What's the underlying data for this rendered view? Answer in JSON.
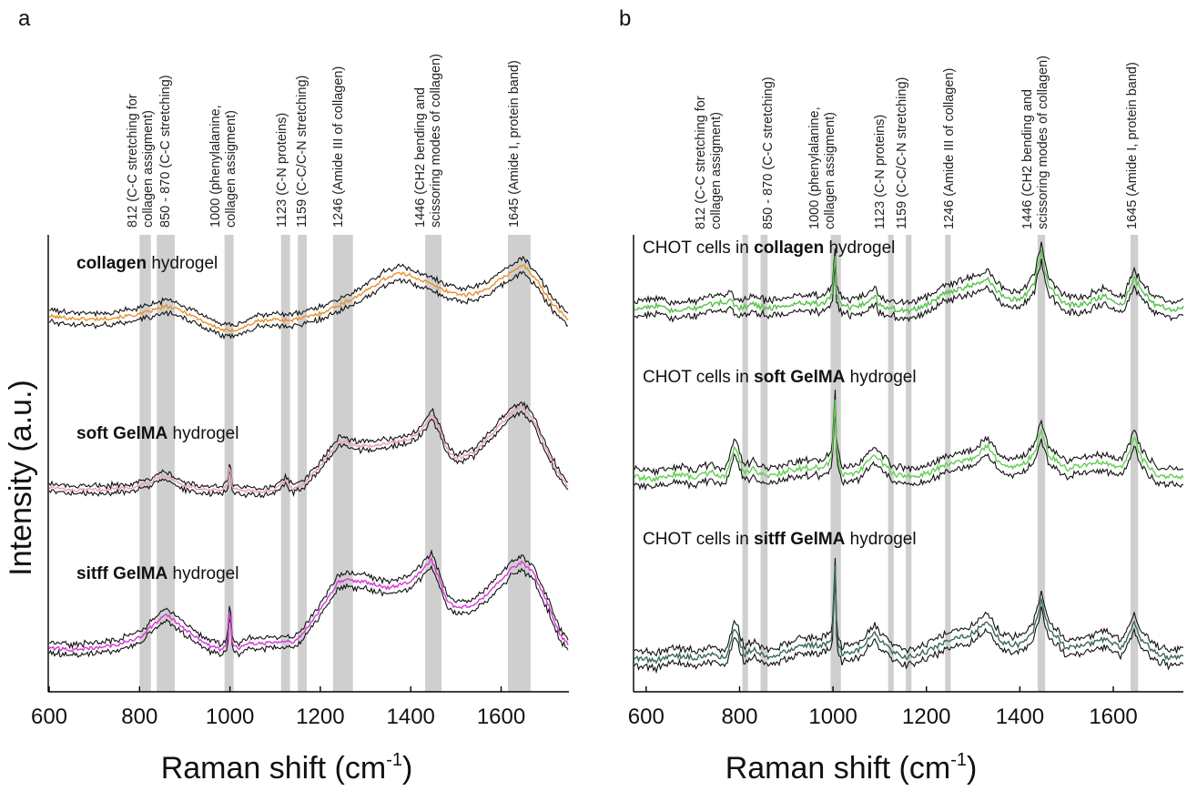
{
  "panels": [
    {
      "letter": "a"
    },
    {
      "letter": "b"
    }
  ],
  "ylabel": "Intensity (a.u.)",
  "xlabel_main": "Raman shift (cm",
  "xlabel_sup": "-1",
  "xlabel_close": ")",
  "peak_labels_a": [
    {
      "l1": "812 (C-C stretching for",
      "l2": "collagen assigment)"
    },
    {
      "l1": "850 - 870 (C-C stretching)",
      "l2": ""
    },
    {
      "l1": "1000 (phenylalanine,",
      "l2": "collagen assigment)"
    },
    {
      "l1": "1123 (C-N proteins)",
      "l2": ""
    },
    {
      "l1": "1159 (C-C/C-N stretching)",
      "l2": ""
    },
    {
      "l1": "1246 (Amide III of collagen)",
      "l2": ""
    },
    {
      "l1": "1446 (CH2 bending and",
      "l2": "scissoring modes of collagen)"
    },
    {
      "l1": "1645 (Amide I, protein band)",
      "l2": ""
    }
  ],
  "peak_labels_b": [
    {
      "l1": "812 (C-C stretching for",
      "l2": "collagen assigment)"
    },
    {
      "l1": "850 - 870 (C-C stretching)",
      "l2": ""
    },
    {
      "l1": "1000 (phenylalanine,",
      "l2": "collagen assigment)"
    },
    {
      "l1": "1123 (C-N proteins)",
      "l2": ""
    },
    {
      "l1": "1159 (C-C/C-N stretching)",
      "l2": ""
    },
    {
      "l1": "1246 (Amide III of collagen)",
      "l2": ""
    },
    {
      "l1": "1446 (CH2 bending and",
      "l2": "scissoring modes of collagen)"
    },
    {
      "l1": "1645 (Amide I, protein band)",
      "l2": ""
    }
  ],
  "series_labels_a": [
    {
      "bold": "collagen",
      "rest": " hydrogel"
    },
    {
      "bold": "soft GelMA",
      "rest": " hydrogel"
    },
    {
      "bold": "sitff GelMA",
      "rest": " hydrogel"
    }
  ],
  "series_labels_b": [
    {
      "pre": "CHOT cells in ",
      "bold": "collagen",
      "rest": " hydrogel"
    },
    {
      "pre": "CHOT cells in ",
      "bold": "soft GelMA",
      "rest": " hydrogel"
    },
    {
      "pre": "CHOT cells in ",
      "bold": "sitff GelMA",
      "rest": " hydrogel"
    }
  ],
  "chart_data": [
    {
      "type": "line",
      "panel": "a",
      "xlabel": "Raman shift (cm-1)",
      "ylabel": "Intensity (a.u.)",
      "xlim": [
        600,
        1750
      ],
      "xticks": [
        600,
        800,
        1000,
        1200,
        1400,
        1600
      ],
      "bands": [
        [
          800,
          825
        ],
        [
          838,
          878
        ],
        [
          988,
          1008
        ],
        [
          1113,
          1133
        ],
        [
          1150,
          1170
        ],
        [
          1228,
          1272
        ],
        [
          1432,
          1468
        ],
        [
          1615,
          1665
        ]
      ],
      "series": [
        {
          "name": "collagen hydrogel",
          "color": "#e8912a",
          "spread": 0.055,
          "x": [
            600,
            650,
            700,
            750,
            800,
            830,
            860,
            890,
            920,
            950,
            980,
            1000,
            1030,
            1060,
            1100,
            1130,
            1160,
            1200,
            1230,
            1260,
            1300,
            1340,
            1370,
            1400,
            1430,
            1450,
            1480,
            1520,
            1560,
            1600,
            1630,
            1650,
            1680,
            1710,
            1750
          ],
          "y": [
            0.25,
            0.23,
            0.22,
            0.24,
            0.27,
            0.31,
            0.35,
            0.31,
            0.25,
            0.18,
            0.12,
            0.1,
            0.14,
            0.2,
            0.22,
            0.21,
            0.23,
            0.28,
            0.34,
            0.4,
            0.5,
            0.62,
            0.68,
            0.66,
            0.6,
            0.56,
            0.5,
            0.46,
            0.5,
            0.62,
            0.72,
            0.76,
            0.6,
            0.4,
            0.2
          ]
        },
        {
          "name": "soft GelMA hydrogel",
          "color": "#e7a0b8",
          "spread": 0.035,
          "x": [
            600,
            650,
            700,
            750,
            800,
            830,
            850,
            870,
            900,
            940,
            980,
            995,
            1000,
            1005,
            1020,
            1060,
            1100,
            1123,
            1140,
            1160,
            1200,
            1240,
            1260,
            1300,
            1350,
            1400,
            1430,
            1446,
            1460,
            1480,
            1500,
            1540,
            1580,
            1620,
            1645,
            1670,
            1700,
            1730,
            1750
          ],
          "y": [
            0.12,
            0.08,
            0.09,
            0.1,
            0.13,
            0.18,
            0.25,
            0.2,
            0.13,
            0.09,
            0.08,
            0.12,
            0.36,
            0.12,
            0.08,
            0.07,
            0.09,
            0.18,
            0.1,
            0.14,
            0.32,
            0.58,
            0.56,
            0.52,
            0.56,
            0.6,
            0.72,
            0.85,
            0.72,
            0.5,
            0.4,
            0.46,
            0.65,
            0.85,
            0.92,
            0.8,
            0.5,
            0.22,
            0.12
          ]
        },
        {
          "name": "sitff GelMA hydrogel",
          "color": "#d838d8",
          "spread": 0.05,
          "x": [
            600,
            650,
            700,
            750,
            780,
            800,
            830,
            860,
            880,
            900,
            920,
            950,
            980,
            995,
            1000,
            1005,
            1020,
            1040,
            1060,
            1100,
            1123,
            1140,
            1160,
            1200,
            1240,
            1260,
            1300,
            1350,
            1400,
            1430,
            1446,
            1460,
            1480,
            1500,
            1540,
            1580,
            1620,
            1645,
            1670,
            1700,
            1730,
            1750
          ],
          "y": [
            0.12,
            0.1,
            0.12,
            0.15,
            0.2,
            0.22,
            0.35,
            0.45,
            0.38,
            0.3,
            0.25,
            0.15,
            0.1,
            0.18,
            0.55,
            0.16,
            0.12,
            0.18,
            0.16,
            0.18,
            0.2,
            0.16,
            0.26,
            0.5,
            0.78,
            0.8,
            0.78,
            0.72,
            0.78,
            0.92,
            1.0,
            0.85,
            0.6,
            0.52,
            0.55,
            0.7,
            0.9,
            0.97,
            0.88,
            0.6,
            0.25,
            0.15
          ]
        }
      ]
    },
    {
      "type": "line",
      "panel": "b",
      "xlabel": "Raman shift (cm-1)",
      "ylabel": "",
      "xlim": [
        575,
        1750
      ],
      "xticks": [
        600,
        800,
        1000,
        1200,
        1400,
        1600
      ],
      "bands": [
        [
          806,
          818
        ],
        [
          845,
          860
        ],
        [
          995,
          1017
        ],
        [
          1118,
          1130
        ],
        [
          1156,
          1168
        ],
        [
          1240,
          1252
        ],
        [
          1438,
          1454
        ],
        [
          1637,
          1653
        ]
      ],
      "series": [
        {
          "name": "CHOT cells in collagen hydrogel",
          "color": "#57c04a",
          "spread": 0.045,
          "x": [
            575,
            620,
            660,
            700,
            740,
            780,
            800,
            830,
            860,
            900,
            940,
            980,
            1000,
            1004,
            1008,
            1020,
            1050,
            1090,
            1100,
            1130,
            1160,
            1200,
            1240,
            1260,
            1300,
            1330,
            1360,
            1400,
            1430,
            1446,
            1460,
            1500,
            1540,
            1580,
            1620,
            1645,
            1660,
            1690,
            1720,
            1750
          ],
          "y": [
            0.3,
            0.32,
            0.28,
            0.3,
            0.33,
            0.35,
            0.3,
            0.33,
            0.3,
            0.32,
            0.34,
            0.33,
            0.4,
            0.7,
            0.38,
            0.32,
            0.3,
            0.38,
            0.32,
            0.3,
            0.28,
            0.32,
            0.4,
            0.42,
            0.45,
            0.5,
            0.38,
            0.35,
            0.45,
            0.68,
            0.45,
            0.32,
            0.33,
            0.38,
            0.32,
            0.5,
            0.42,
            0.32,
            0.3,
            0.3
          ]
        },
        {
          "name": "CHOT cells in soft GelMA hydrogel",
          "color": "#63d050",
          "spread": 0.045,
          "x": [
            575,
            620,
            660,
            700,
            740,
            770,
            790,
            810,
            830,
            860,
            900,
            940,
            980,
            995,
            1000,
            1004,
            1008,
            1020,
            1050,
            1090,
            1100,
            1130,
            1160,
            1200,
            1240,
            1260,
            1300,
            1330,
            1360,
            1400,
            1430,
            1446,
            1460,
            1500,
            1540,
            1580,
            1620,
            1645,
            1660,
            1690,
            1720,
            1750
          ],
          "y": [
            0.3,
            0.28,
            0.32,
            0.3,
            0.33,
            0.3,
            0.5,
            0.32,
            0.35,
            0.3,
            0.34,
            0.36,
            0.36,
            0.4,
            0.5,
            0.85,
            0.45,
            0.32,
            0.32,
            0.45,
            0.4,
            0.32,
            0.3,
            0.32,
            0.38,
            0.4,
            0.42,
            0.5,
            0.38,
            0.36,
            0.45,
            0.6,
            0.45,
            0.35,
            0.38,
            0.4,
            0.35,
            0.55,
            0.42,
            0.32,
            0.3,
            0.3
          ]
        },
        {
          "name": "CHOT cells in sitff GelMA hydrogel",
          "color": "#3a6a55",
          "spread": 0.045,
          "x": [
            575,
            620,
            660,
            700,
            740,
            770,
            790,
            810,
            830,
            860,
            900,
            940,
            980,
            995,
            1000,
            1004,
            1008,
            1020,
            1050,
            1090,
            1100,
            1130,
            1160,
            1200,
            1240,
            1260,
            1300,
            1330,
            1360,
            1400,
            1430,
            1446,
            1460,
            1500,
            1540,
            1580,
            1620,
            1645,
            1660,
            1690,
            1720,
            1750
          ],
          "y": [
            0.22,
            0.2,
            0.24,
            0.22,
            0.24,
            0.22,
            0.42,
            0.24,
            0.28,
            0.22,
            0.26,
            0.3,
            0.3,
            0.32,
            0.4,
            0.9,
            0.35,
            0.24,
            0.26,
            0.38,
            0.34,
            0.25,
            0.22,
            0.26,
            0.32,
            0.34,
            0.38,
            0.46,
            0.32,
            0.3,
            0.4,
            0.6,
            0.42,
            0.28,
            0.3,
            0.34,
            0.28,
            0.45,
            0.34,
            0.25,
            0.22,
            0.22
          ]
        }
      ]
    }
  ]
}
